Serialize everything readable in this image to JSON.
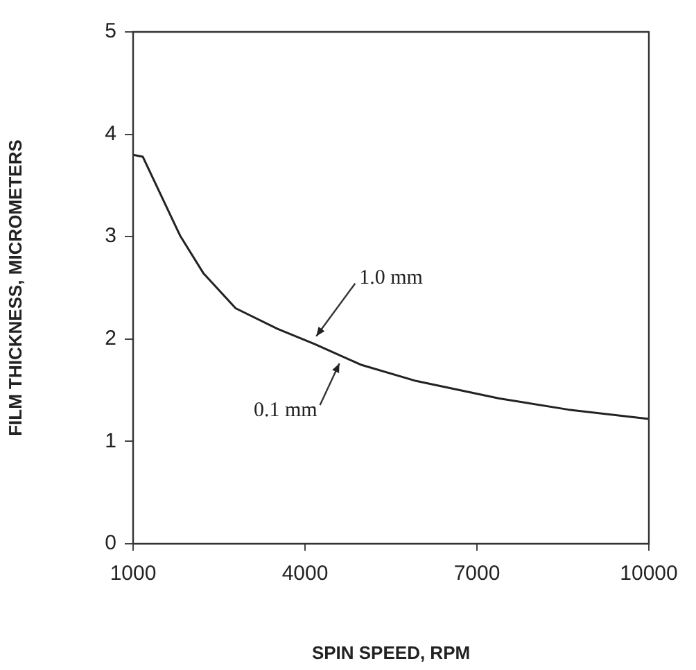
{
  "chart_data": {
    "type": "line",
    "xlabel": "SPIN SPEED, RPM",
    "ylabel": "FILM THICKNESS, MICROMETERS",
    "x": [
      1000,
      1170,
      1820,
      2230,
      2790,
      3520,
      4170,
      4970,
      5940,
      7390,
      8600,
      10000
    ],
    "series": [
      {
        "color": "#222222",
        "values": [
          3.8,
          3.78,
          3.01,
          2.64,
          2.3,
          2.1,
          1.95,
          1.75,
          1.59,
          1.42,
          1.31,
          1.22
        ]
      }
    ],
    "xlim": [
      1000,
      10000
    ],
    "xticks": [
      1000,
      4000,
      7000,
      10000
    ],
    "ylim": [
      0,
      5
    ],
    "yticks": [
      0,
      1,
      2,
      3,
      4,
      5
    ],
    "grid": false,
    "legend": false,
    "marker": "none",
    "line_style": "solid",
    "annotations": [
      {
        "text": "1.0 mm",
        "x": 4100,
        "y": 1.96
      },
      {
        "text": "0.1 mm",
        "x": 4600,
        "y": 1.83
      }
    ]
  }
}
